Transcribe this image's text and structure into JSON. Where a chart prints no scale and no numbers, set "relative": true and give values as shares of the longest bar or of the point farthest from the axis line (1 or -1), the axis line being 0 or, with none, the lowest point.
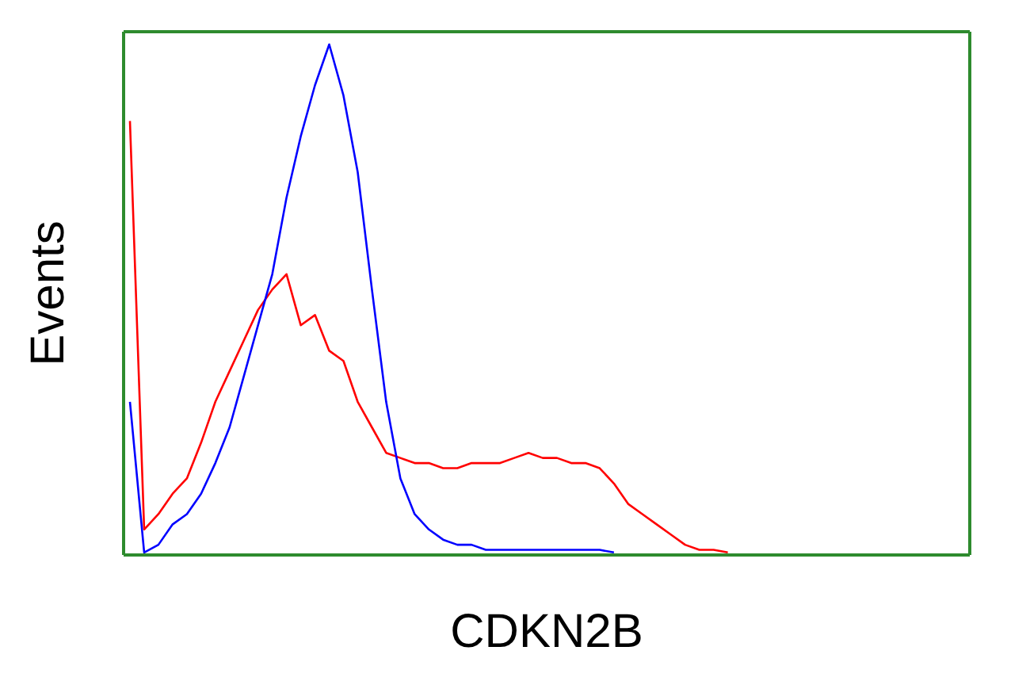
{
  "chart_data": {
    "type": "line",
    "relative": true,
    "xlabel": "CDKN2B",
    "ylabel": "Events",
    "categories": [
      null,
      null,
      null,
      null,
      null,
      null,
      null,
      null,
      null,
      null,
      null,
      null,
      null,
      null,
      null,
      null,
      null,
      null,
      null,
      null,
      null,
      null,
      null,
      null,
      null,
      null,
      null,
      null,
      null,
      null,
      null,
      null,
      null,
      null,
      null,
      null,
      null,
      null,
      null,
      null,
      null,
      null,
      null,
      null,
      null,
      null,
      null,
      null,
      null,
      null,
      null,
      null,
      null,
      null,
      null,
      null,
      null,
      null,
      null,
      null
    ],
    "series": [
      {
        "color": "#ff0000",
        "values": [
          0.85,
          0.05,
          0.08,
          0.12,
          0.15,
          0.22,
          0.3,
          0.36,
          0.42,
          0.48,
          0.52,
          0.55,
          0.45,
          0.47,
          0.4,
          0.38,
          0.3,
          0.25,
          0.2,
          0.19,
          0.18,
          0.18,
          0.17,
          0.17,
          0.18,
          0.18,
          0.18,
          0.19,
          0.2,
          0.19,
          0.19,
          0.18,
          0.18,
          0.17,
          0.14,
          0.1,
          0.08,
          0.06,
          0.04,
          0.02,
          0.01,
          0.01,
          0.005,
          null,
          null,
          null,
          null,
          null,
          null,
          null,
          null,
          null,
          null,
          null,
          null,
          null,
          null,
          null,
          null,
          null
        ]
      },
      {
        "color": "#0000ff",
        "values": [
          0.3,
          0.005,
          0.02,
          0.06,
          0.08,
          0.12,
          0.18,
          0.25,
          0.35,
          0.45,
          0.55,
          0.7,
          0.82,
          0.92,
          1,
          0.9,
          0.75,
          0.52,
          0.3,
          0.15,
          0.08,
          0.05,
          0.03,
          0.02,
          0.02,
          0.01,
          0.01,
          0.01,
          0.01,
          0.01,
          0.01,
          0.01,
          0.01,
          0.01,
          0.005,
          null,
          null,
          null,
          null,
          null,
          null,
          null,
          null,
          null,
          null,
          null,
          null,
          null,
          null,
          null,
          null,
          null,
          null,
          null,
          null,
          null,
          null,
          null,
          null,
          null
        ]
      }
    ]
  }
}
